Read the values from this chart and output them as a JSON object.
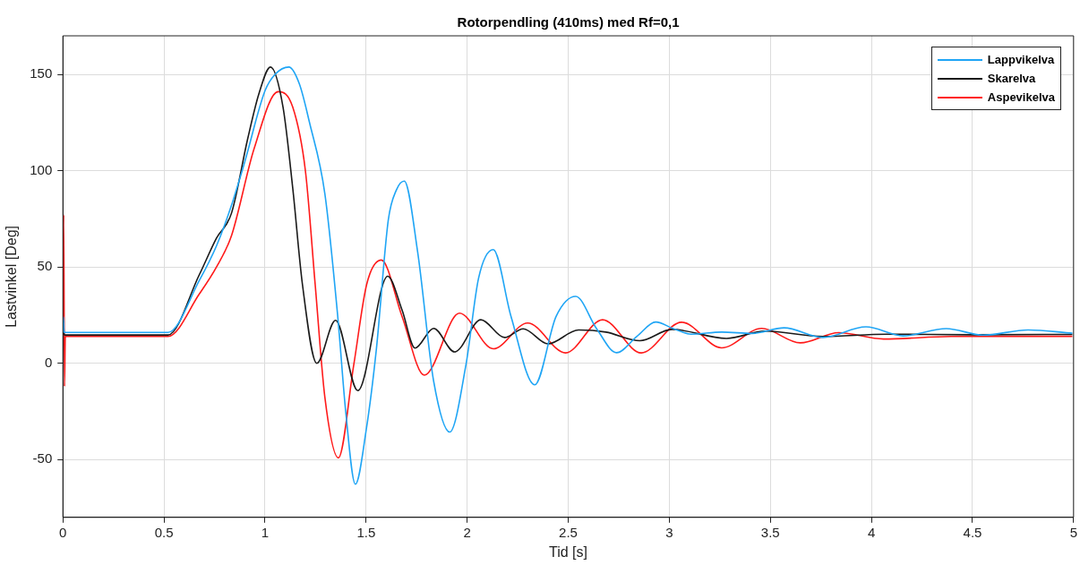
{
  "chart_data": {
    "type": "line",
    "title": "Rotorpendling (410ms) med Rf=0,1",
    "xlabel": "Tid [s]",
    "ylabel": "Lastvinkel [Deg]",
    "xlim": [
      0,
      5
    ],
    "xticks": [
      0,
      0.5,
      1,
      1.5,
      2,
      2.5,
      3,
      3.5,
      4,
      4.5,
      5
    ],
    "ylim": [
      -80,
      170
    ],
    "yticks": [
      -50,
      0,
      50,
      100,
      150
    ],
    "grid": true,
    "legend": "top right",
    "marker": "none",
    "line_style": "solid",
    "series": [
      {
        "name": "Lappvikelva",
        "color": "#1fa5f5",
        "x": [
          0,
          0.003,
          0.006,
          0.5,
          0.52,
          0.675,
          0.76,
          0.834,
          0.9,
          1,
          1.05,
          1.118,
          1.17,
          1.22,
          1.296,
          1.36,
          1.4,
          1.447,
          1.5,
          1.551,
          1.61,
          1.65,
          1.689,
          1.755,
          1.834,
          1.914,
          1.994,
          2.057,
          2.129,
          2.217,
          2.334,
          2.44,
          2.537,
          2.64,
          2.739,
          2.84,
          2.933,
          3.02,
          3.108,
          3.259,
          3.41,
          3.568,
          3.759,
          3.973,
          4.156,
          4.37,
          4.552,
          4.775,
          4.994
        ],
        "values": [
          16,
          24,
          16,
          16,
          16,
          43,
          61,
          82,
          104.7,
          141.5,
          150,
          153.8,
          145,
          125,
          88,
          24,
          -26,
          -62.8,
          -35,
          7.5,
          74.5,
          90,
          94.6,
          57.8,
          -9.2,
          -35.7,
          -0.8,
          44.4,
          59,
          24.3,
          -11.2,
          24.3,
          34.7,
          18,
          5.5,
          14,
          21.4,
          18,
          15.1,
          16.2,
          15.5,
          18.4,
          13.4,
          18.9,
          14.2,
          18,
          14.6,
          17.3,
          15.6
        ]
      },
      {
        "name": "Skarelva",
        "color": "#1a1a1a",
        "x": [
          0,
          0.003,
          0.006,
          0.5,
          0.52,
          0.675,
          0.76,
          0.834,
          0.914,
          0.97,
          1.027,
          1.089,
          1.137,
          1.185,
          1.256,
          1.349,
          1.459,
          1.607,
          1.678,
          1.742,
          1.834,
          1.938,
          2.068,
          2.185,
          2.277,
          2.4,
          2.551,
          2.686,
          2.854,
          3.013,
          3.283,
          3.473,
          3.759,
          4.076,
          4.5,
          4.994
        ],
        "values": [
          14.7,
          22,
          14.7,
          14.7,
          14.7,
          46,
          65,
          77.9,
          116.4,
          140,
          153.8,
          133,
          91,
          41,
          0,
          22.3,
          -14.2,
          45.2,
          27.6,
          7.9,
          18.1,
          5.9,
          22.6,
          13.4,
          17.9,
          10.1,
          17.3,
          16.2,
          11.7,
          17.6,
          12.9,
          16.7,
          13.9,
          15.1,
          14.8,
          15
        ]
      },
      {
        "name": "Aspevikelva",
        "color": "#ff1a1a",
        "x": [
          0,
          0.004,
          0.008,
          0.012,
          0.5,
          0.52,
          0.675,
          0.76,
          0.834,
          0.946,
          1.065,
          1.137,
          1.2,
          1.248,
          1.296,
          1.363,
          1.439,
          1.503,
          1.575,
          1.678,
          1.788,
          1.962,
          2.129,
          2.299,
          2.487,
          2.67,
          2.861,
          3.061,
          3.259,
          3.457,
          3.648,
          3.838,
          4.06,
          4.394,
          4.994
        ],
        "values": [
          14,
          77,
          -12,
          14,
          14,
          14,
          36,
          50,
          66.2,
          111.4,
          141,
          133,
          99.7,
          41,
          -17.6,
          -49.1,
          -0.8,
          41,
          53.6,
          24.3,
          -6.2,
          26,
          7.5,
          20.9,
          5.4,
          22.6,
          5.4,
          21.3,
          8,
          18.1,
          10.6,
          15.9,
          12.6,
          13.9,
          14
        ]
      }
    ]
  }
}
